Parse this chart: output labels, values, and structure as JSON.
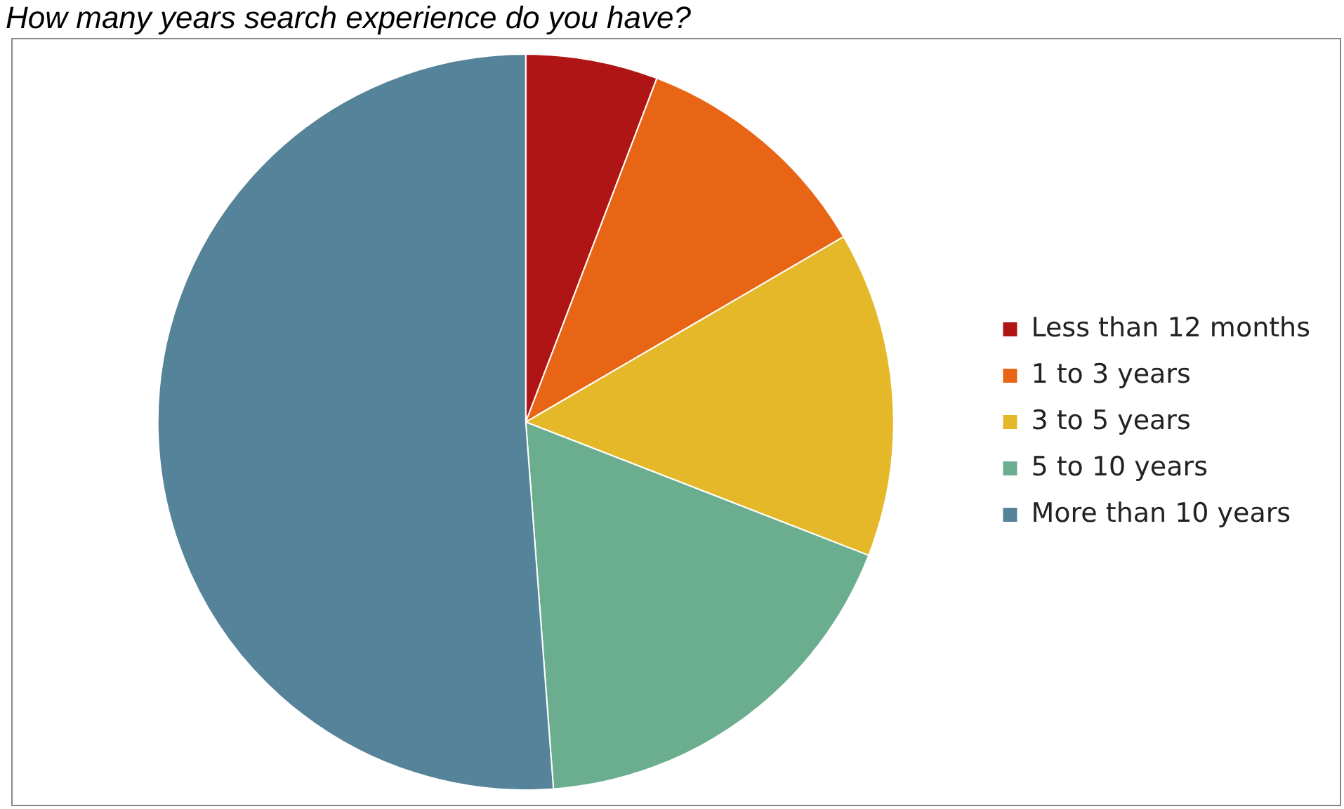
{
  "chart_data": {
    "type": "pie",
    "title": "How many years search experience do you have?",
    "categories": [
      "Less than 12 months",
      "1 to 3 years",
      "3 to 5 years",
      "5 to 10 years",
      "More than 10 years"
    ],
    "values": [
      5.8,
      10.8,
      14.3,
      17.9,
      51.2
    ],
    "colors": [
      "#b01515",
      "#e86515",
      "#e5b82a",
      "#6aad8f",
      "#558399"
    ],
    "legend": "right"
  }
}
